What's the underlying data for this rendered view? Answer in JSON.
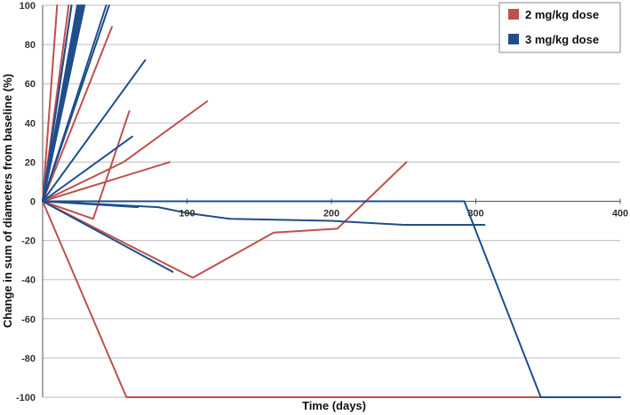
{
  "chart_data": {
    "type": "line",
    "xlabel": "Time (days)",
    "ylabel": "Change in sum of diameters from baseline (%)",
    "xlim": [
      0,
      400
    ],
    "ylim": [
      -100,
      100
    ],
    "x_ticks": [
      0,
      100,
      200,
      300,
      400
    ],
    "y_ticks": [
      100,
      80,
      60,
      40,
      20,
      0,
      -20,
      -40,
      -60,
      -80,
      -100
    ],
    "x_tick_labels": [
      "100",
      "200",
      "300",
      "400"
    ],
    "y_tick_labels": [
      "100",
      "80",
      "60",
      "40",
      "20",
      "0",
      "-20",
      "-40",
      "-60",
      "-80",
      "-100"
    ],
    "grid": "horizontal",
    "legend_position": "top-right",
    "legend": [
      {
        "label": "2 mg/kg dose",
        "color": "#c0504d"
      },
      {
        "label": "3 mg/kg dose",
        "color": "#1f4e8c"
      }
    ],
    "series": [
      {
        "group": "2 mg/kg dose",
        "points": [
          [
            0,
            0
          ],
          [
            10,
            100
          ]
        ]
      },
      {
        "group": "2 mg/kg dose",
        "points": [
          [
            0,
            0
          ],
          [
            18,
            100
          ]
        ]
      },
      {
        "group": "2 mg/kg dose",
        "points": [
          [
            0,
            0
          ],
          [
            20,
            100
          ]
        ]
      },
      {
        "group": "2 mg/kg dose",
        "points": [
          [
            0,
            0
          ],
          [
            48,
            89
          ]
        ]
      },
      {
        "group": "2 mg/kg dose",
        "points": [
          [
            0,
            0
          ],
          [
            56,
            20
          ],
          [
            114,
            51
          ]
        ]
      },
      {
        "group": "2 mg/kg dose",
        "points": [
          [
            0,
            0
          ],
          [
            35,
            -9
          ],
          [
            60,
            46
          ]
        ]
      },
      {
        "group": "2 mg/kg dose",
        "points": [
          [
            0,
            0
          ],
          [
            88,
            20
          ]
        ]
      },
      {
        "group": "2 mg/kg dose",
        "points": [
          [
            0,
            0
          ],
          [
            104,
            -39
          ],
          [
            160,
            -16
          ],
          [
            204,
            -14
          ],
          [
            252,
            20
          ]
        ]
      },
      {
        "group": "2 mg/kg dose",
        "points": [
          [
            0,
            0
          ],
          [
            58,
            -100
          ],
          [
            400,
            -100
          ]
        ]
      },
      {
        "group": "3 mg/kg dose",
        "points": [
          [
            0,
            0
          ],
          [
            20,
            100
          ]
        ]
      },
      {
        "group": "3 mg/kg dose",
        "points": [
          [
            0,
            0
          ],
          [
            24,
            100
          ]
        ]
      },
      {
        "group": "3 mg/kg dose",
        "points": [
          [
            0,
            0
          ],
          [
            25,
            100
          ]
        ]
      },
      {
        "group": "3 mg/kg dose",
        "points": [
          [
            0,
            0
          ],
          [
            26,
            100
          ]
        ]
      },
      {
        "group": "3 mg/kg dose",
        "points": [
          [
            0,
            0
          ],
          [
            27,
            100
          ]
        ]
      },
      {
        "group": "3 mg/kg dose",
        "points": [
          [
            0,
            0
          ],
          [
            28,
            100
          ]
        ]
      },
      {
        "group": "3 mg/kg dose",
        "points": [
          [
            0,
            0
          ],
          [
            29,
            100
          ]
        ]
      },
      {
        "group": "3 mg/kg dose",
        "points": [
          [
            0,
            0
          ],
          [
            44,
            100
          ]
        ]
      },
      {
        "group": "3 mg/kg dose",
        "points": [
          [
            0,
            0
          ],
          [
            46,
            100
          ]
        ]
      },
      {
        "group": "3 mg/kg dose",
        "points": [
          [
            0,
            0
          ],
          [
            71,
            72
          ]
        ]
      },
      {
        "group": "3 mg/kg dose",
        "points": [
          [
            0,
            0
          ],
          [
            62,
            33
          ]
        ]
      },
      {
        "group": "3 mg/kg dose",
        "points": [
          [
            0,
            0
          ],
          [
            66,
            -3
          ]
        ]
      },
      {
        "group": "3 mg/kg dose",
        "points": [
          [
            0,
            0
          ],
          [
            90,
            -36
          ]
        ]
      },
      {
        "group": "3 mg/kg dose",
        "points": [
          [
            0,
            0
          ],
          [
            292,
            0
          ],
          [
            345,
            -100
          ],
          [
            400,
            -100
          ]
        ]
      },
      {
        "group": "3 mg/kg dose",
        "points": [
          [
            0,
            0
          ],
          [
            80,
            -3
          ],
          [
            100,
            -6
          ],
          [
            130,
            -9
          ],
          [
            200,
            -10
          ],
          [
            250,
            -12
          ],
          [
            306,
            -12
          ]
        ]
      }
    ]
  }
}
